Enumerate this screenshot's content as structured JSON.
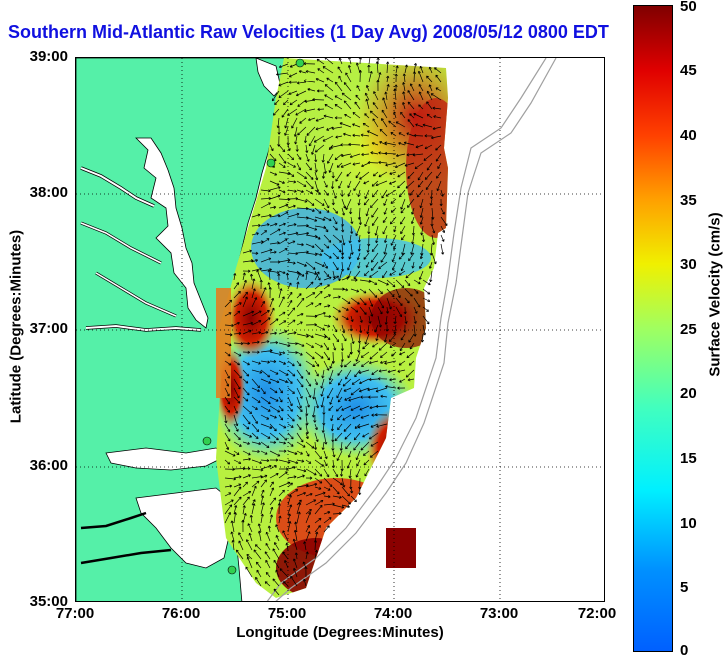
{
  "title": "Southern Mid-Atlantic Raw Velocities (1 Day Avg) 2008/05/12 0800 EDT",
  "map": {
    "x_label": "Longitude (Degrees:Minutes)",
    "y_label": "Latitude (Degrees:Minutes)",
    "lon_ticks": [
      "77:00",
      "76:00",
      "75:00",
      "74:00",
      "73:00",
      "72:00"
    ],
    "lat_ticks": [
      "39:00",
      "38:00",
      "37:00",
      "36:00",
      "35:00"
    ],
    "lon_range_deg": [
      -77,
      -72
    ],
    "lat_range_deg": [
      35,
      39
    ],
    "grid": "dotted",
    "colors": {
      "land": "#55f0a8",
      "coast": "#000000",
      "arrows": "#000000",
      "bathymetry": "#a0a0a0"
    }
  },
  "colorbar": {
    "label": "Surface Velocity (cm/s)",
    "ticks": [
      "50",
      "45",
      "40",
      "35",
      "30",
      "25",
      "20",
      "15",
      "10",
      "5",
      "0"
    ],
    "range_cm_s": [
      0,
      50
    ],
    "colormap": "jet"
  }
}
